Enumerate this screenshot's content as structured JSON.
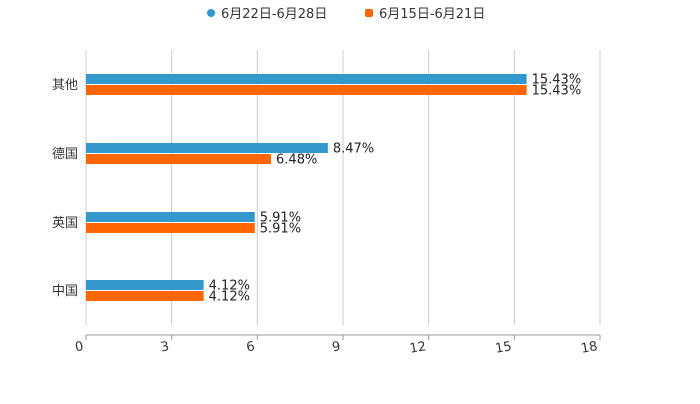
{
  "chart_data": {
    "type": "bar",
    "orientation": "horizontal",
    "categories": [
      "其他",
      "德国",
      "英国",
      "中国"
    ],
    "series": [
      {
        "name": "6月22日-6月28日",
        "color": "#3399cc",
        "values": [
          15.43,
          8.47,
          5.91,
          4.12
        ],
        "labels": [
          "15.43%",
          "8.47%",
          "5.91%",
          "4.12%"
        ]
      },
      {
        "name": "6月15日-6月21日",
        "color": "#ff6600",
        "values": [
          15.43,
          6.48,
          5.91,
          4.12
        ],
        "labels": [
          "15.43%",
          "6.48%",
          "5.91%",
          "4.12%"
        ]
      }
    ],
    "xlim": [
      0,
      18
    ],
    "xticks": [
      "0",
      "3",
      "6",
      "9",
      "12",
      "15",
      "18"
    ],
    "grid": true,
    "legend": "top-center"
  }
}
